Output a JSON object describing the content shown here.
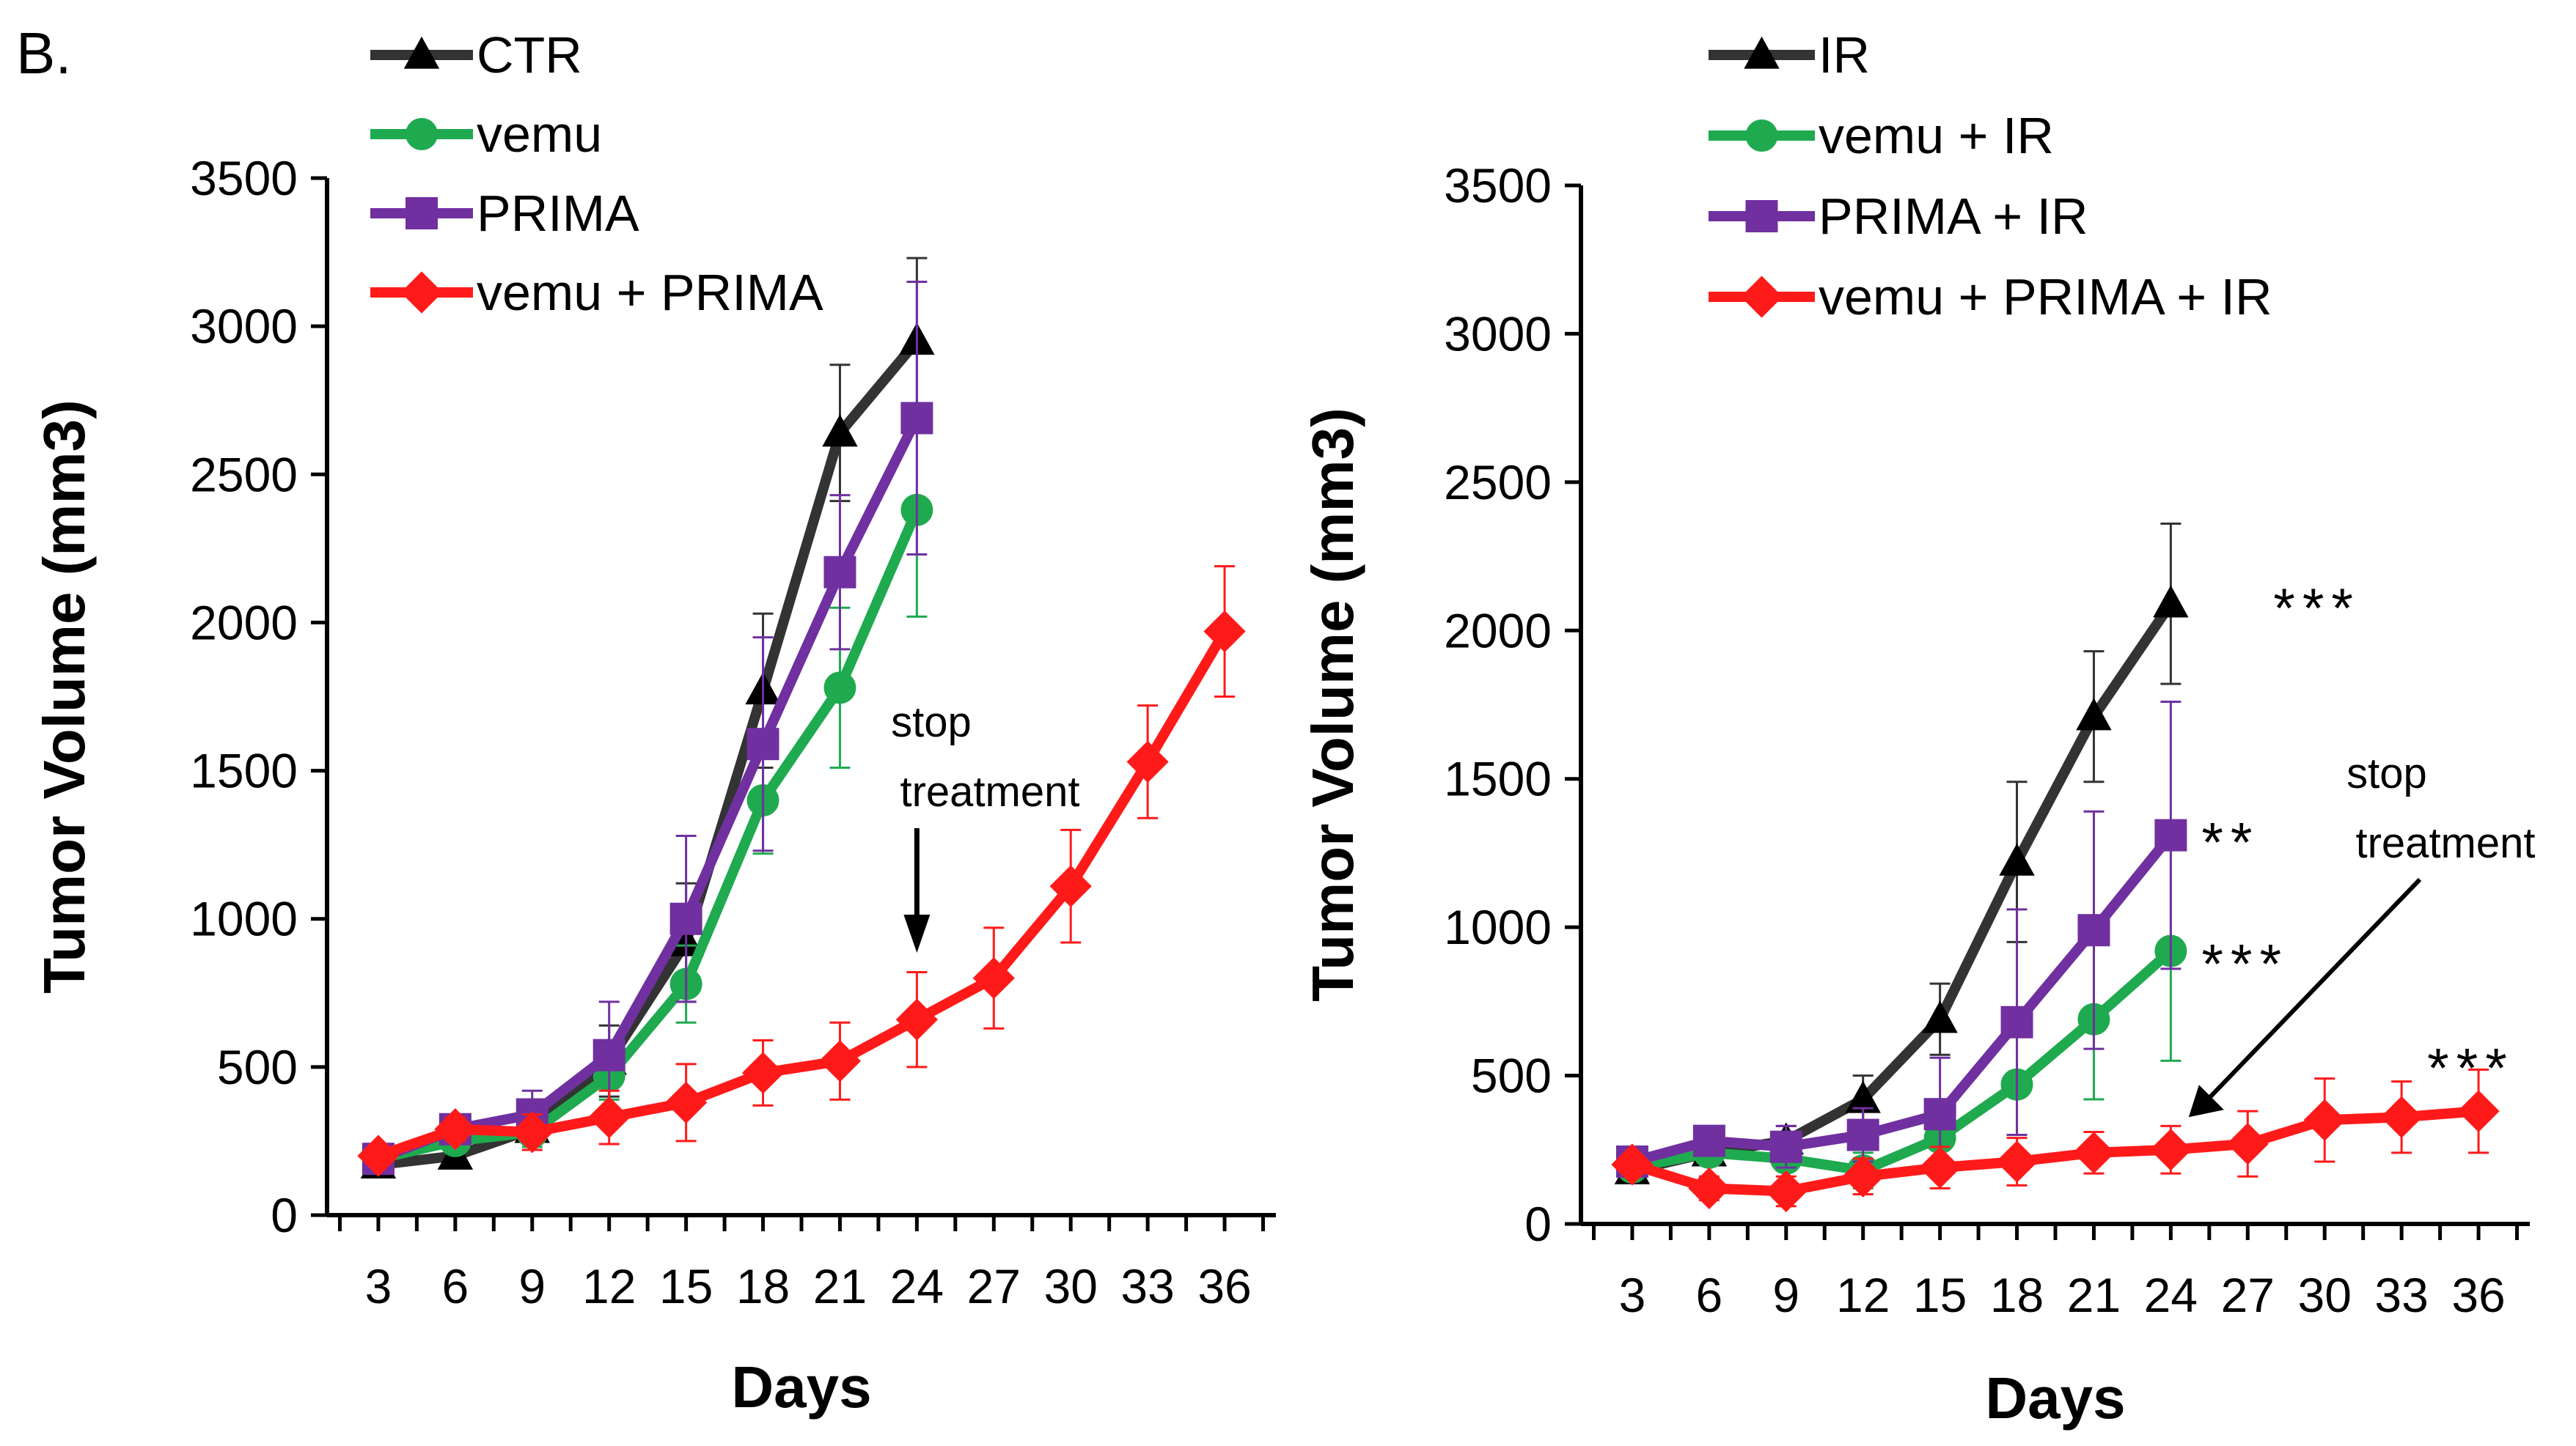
{
  "figure": {
    "panel_label": "B."
  },
  "chart_data": [
    {
      "type": "line",
      "xlabel": "Days",
      "ylabel": "Tumor Volume (mm3)",
      "x_ticks": [
        3,
        6,
        9,
        12,
        15,
        18,
        21,
        24,
        27,
        30,
        33,
        36
      ],
      "y_ticks": [
        0,
        500,
        1000,
        1500,
        2000,
        2500,
        3000,
        3500
      ],
      "xlim": [
        1,
        38
      ],
      "ylim": [
        0,
        3500
      ],
      "legend_position": "top-left",
      "series": [
        {
          "name": "CTR",
          "color": "#333333",
          "marker": "triangle",
          "x": [
            3,
            6,
            9,
            12,
            15,
            18,
            21,
            24
          ],
          "y": [
            170,
            200,
            290,
            520,
            920,
            1770,
            2640,
            2950
          ],
          "err": [
            20,
            30,
            50,
            120,
            200,
            260,
            230,
            280
          ]
        },
        {
          "name": "vemu",
          "color": "#1faa4f",
          "marker": "circle",
          "x": [
            3,
            6,
            9,
            12,
            15,
            18,
            21,
            24
          ],
          "y": [
            190,
            250,
            280,
            470,
            780,
            1400,
            1780,
            2380
          ],
          "err": [
            20,
            40,
            50,
            80,
            130,
            180,
            270,
            360
          ]
        },
        {
          "name": "PRIMA",
          "color": "#7030a0",
          "marker": "square",
          "x": [
            3,
            6,
            9,
            12,
            15,
            18,
            21,
            24
          ],
          "y": [
            190,
            290,
            340,
            540,
            1000,
            1590,
            2170,
            2690
          ],
          "err": [
            20,
            40,
            80,
            180,
            280,
            360,
            260,
            460
          ]
        },
        {
          "name": "vemu + PRIMA",
          "color": "#ff1a1a",
          "marker": "diamond",
          "x": [
            3,
            6,
            9,
            12,
            15,
            18,
            21,
            24,
            27,
            30,
            33,
            36
          ],
          "y": [
            200,
            290,
            280,
            330,
            380,
            480,
            520,
            660,
            800,
            1110,
            1530,
            1970
          ],
          "err": [
            20,
            40,
            60,
            90,
            130,
            110,
            130,
            160,
            170,
            190,
            190,
            220
          ]
        }
      ],
      "annotations": [
        {
          "text_lines": [
            "stop",
            "treatment"
          ],
          "arrow_to": [
            24,
            880
          ]
        }
      ]
    },
    {
      "type": "line",
      "xlabel": "Days",
      "ylabel": "Tumor Volume (mm3)",
      "x_ticks": [
        3,
        6,
        9,
        12,
        15,
        18,
        21,
        24,
        27,
        30,
        33,
        36
      ],
      "y_ticks": [
        0,
        500,
        1000,
        1500,
        2000,
        2500,
        3000,
        3500
      ],
      "xlim": [
        1,
        38
      ],
      "ylim": [
        0,
        3500
      ],
      "legend_position": "top-left",
      "series": [
        {
          "name": "IR",
          "color": "#333333",
          "marker": "triangle",
          "x": [
            3,
            6,
            9,
            12,
            15,
            18,
            21,
            24
          ],
          "y": [
            180,
            240,
            280,
            420,
            690,
            1220,
            1710,
            2090
          ],
          "err": [
            20,
            40,
            50,
            80,
            120,
            270,
            220,
            270
          ]
        },
        {
          "name": "vemu +  IR",
          "color": "#1faa4f",
          "marker": "circle",
          "x": [
            3,
            6,
            9,
            12,
            15,
            18,
            21,
            24
          ],
          "y": [
            190,
            240,
            220,
            180,
            290,
            470,
            690,
            920
          ],
          "err": [
            20,
            40,
            40,
            60,
            90,
            170,
            270,
            370
          ]
        },
        {
          "name": "PRIMA + IR",
          "color": "#7030a0",
          "marker": "square",
          "x": [
            3,
            6,
            9,
            12,
            15,
            18,
            21,
            24
          ],
          "y": [
            210,
            280,
            260,
            300,
            370,
            680,
            990,
            1310
          ],
          "err": [
            20,
            40,
            70,
            90,
            190,
            380,
            400,
            450
          ]
        },
        {
          "name": "vemu + PRIMA +  IR",
          "color": "#ff1a1a",
          "marker": "diamond",
          "x": [
            3,
            6,
            9,
            12,
            15,
            18,
            21,
            24,
            27,
            30,
            33,
            36
          ],
          "y": [
            200,
            120,
            110,
            160,
            190,
            210,
            240,
            250,
            270,
            350,
            360,
            380
          ],
          "err": [
            20,
            40,
            50,
            60,
            70,
            80,
            70,
            80,
            110,
            140,
            120,
            140
          ]
        }
      ],
      "significance": [
        {
          "text": "***",
          "x": 28,
          "y": 2110
        },
        {
          "text": "**",
          "x": 25.2,
          "y": 1320
        },
        {
          "text": "***",
          "x": 25.2,
          "y": 910
        },
        {
          "text": "***",
          "x": 34,
          "y": 560
        }
      ],
      "annotations": [
        {
          "text_lines": [
            "stop",
            "treatment"
          ],
          "arrow_to": [
            24.7,
            360
          ]
        }
      ]
    }
  ]
}
